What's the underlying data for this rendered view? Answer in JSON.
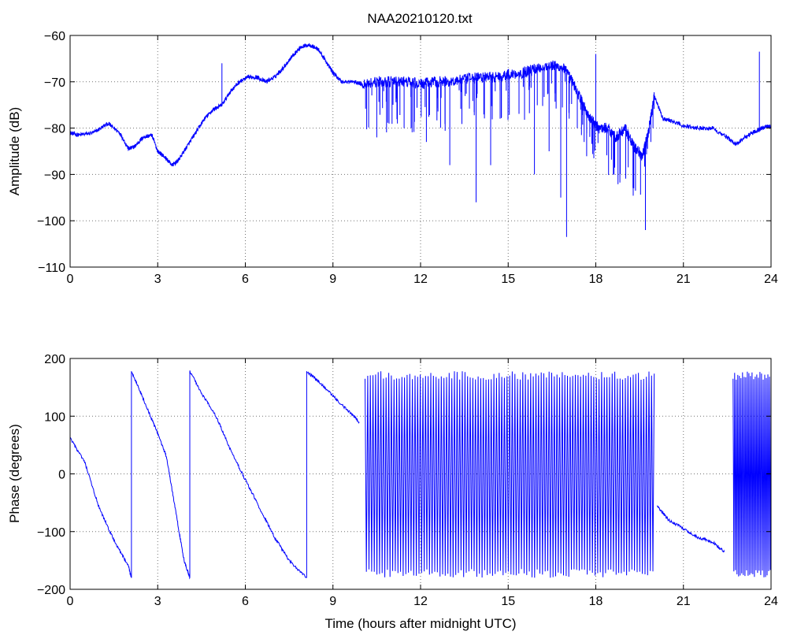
{
  "chart_data": [
    {
      "type": "line",
      "title": "NAA20210120.txt",
      "xlabel": "",
      "ylabel": "Amplitude (dB)",
      "xlim": [
        0,
        24
      ],
      "ylim": [
        -110,
        -60
      ],
      "xticks": [
        0,
        3,
        6,
        9,
        12,
        15,
        18,
        21,
        24
      ],
      "yticks": [
        -110,
        -100,
        -90,
        -80,
        -70,
        -60
      ],
      "ytick_labels": [
        "−110",
        "−100",
        "−90",
        "−80",
        "−70",
        "−60"
      ],
      "grid": true,
      "color": "#0000ff",
      "series": [
        {
          "x": [
            0,
            0.3,
            0.8,
            1.3,
            1.7,
            2.0,
            2.2,
            2.5,
            2.8,
            3.0,
            3.2,
            3.5,
            3.7,
            4.0,
            4.3,
            4.6,
            4.9,
            5.2,
            5.5,
            5.8,
            6.1,
            6.4,
            6.7,
            7.0,
            7.3,
            7.6,
            7.9,
            8.2,
            8.5,
            8.8,
            9.0,
            9.3,
            9.7,
            10.0,
            10.5,
            11.0,
            11.5,
            12.0,
            12.5,
            13.0,
            13.5,
            14.0,
            14.5,
            15.0,
            15.5,
            16.0,
            16.5,
            16.9,
            17.2,
            17.5,
            17.8,
            18.1,
            18.4,
            18.7,
            19.0,
            19.3,
            19.6,
            19.8,
            20.0,
            20.3,
            20.6,
            21.0,
            21.5,
            22.0,
            22.5,
            22.8,
            23.1,
            23.5,
            23.7,
            24.0
          ],
          "y": [
            -81,
            -81.5,
            -81,
            -79,
            -81,
            -84.5,
            -84,
            -82,
            -81.5,
            -85,
            -86,
            -88,
            -87,
            -84,
            -81,
            -78,
            -76,
            -75,
            -72,
            -70,
            -69,
            -69,
            -70,
            -69,
            -67,
            -64.5,
            -62.5,
            -62,
            -63,
            -66,
            -68,
            -70,
            -70,
            -70.5,
            -70,
            -70,
            -70,
            -70.5,
            -70,
            -70,
            -69.5,
            -69,
            -69,
            -68.5,
            -68,
            -67,
            -66.5,
            -67,
            -70,
            -74,
            -78,
            -80,
            -80,
            -82,
            -80,
            -84,
            -86,
            -81,
            -73,
            -78,
            -78.5,
            -79.5,
            -80,
            -80,
            -82,
            -83.5,
            -82,
            -80.5,
            -80,
            -79.5
          ]
        }
      ],
      "spikes": [
        {
          "x": 5.2,
          "y": -66
        },
        {
          "x": 10.5,
          "y": -82
        },
        {
          "x": 12.2,
          "y": -83
        },
        {
          "x": 13.0,
          "y": -88
        },
        {
          "x": 13.9,
          "y": -96
        },
        {
          "x": 14.4,
          "y": -88
        },
        {
          "x": 15.9,
          "y": -90
        },
        {
          "x": 16.4,
          "y": -85
        },
        {
          "x": 16.8,
          "y": -95
        },
        {
          "x": 17.0,
          "y": -103.5
        },
        {
          "x": 17.6,
          "y": -83
        },
        {
          "x": 18.0,
          "y": -64
        },
        {
          "x": 18.6,
          "y": -90
        },
        {
          "x": 19.3,
          "y": -93
        },
        {
          "x": 19.7,
          "y": -102
        },
        {
          "x": 23.6,
          "y": -63.5
        }
      ]
    },
    {
      "type": "line",
      "title": "",
      "xlabel": "Time (hours after midnight UTC)",
      "ylabel": "Phase (degrees)",
      "xlim": [
        0,
        24
      ],
      "ylim": [
        -200,
        200
      ],
      "xticks": [
        0,
        3,
        6,
        9,
        12,
        15,
        18,
        21,
        24
      ],
      "yticks": [
        -200,
        -100,
        0,
        100,
        200
      ],
      "ytick_labels": [
        "−200",
        "−100",
        "0",
        "100",
        "200"
      ],
      "grid": true,
      "color": "#0000ff",
      "segments": [
        {
          "x": [
            0,
            0.5,
            1.0,
            1.5,
            2.0,
            2.1
          ],
          "y": [
            62,
            20,
            -60,
            -115,
            -160,
            -180
          ]
        },
        {
          "x": [
            2.1,
            2.5,
            3.0,
            3.3,
            3.6,
            3.9,
            4.1
          ],
          "y": [
            178,
            130,
            70,
            30,
            -60,
            -150,
            -180
          ]
        },
        {
          "x": [
            4.1,
            4.5,
            5.0,
            5.5,
            6.0,
            6.5,
            7.0,
            7.5,
            8.1
          ],
          "y": [
            178,
            140,
            100,
            40,
            -10,
            -60,
            -110,
            -150,
            -180
          ]
        },
        {
          "x": [
            8.1,
            8.5,
            9.0,
            9.5,
            9.9
          ],
          "y": [
            178,
            160,
            135,
            110,
            90
          ]
        },
        {
          "x": [
            20.1,
            20.5,
            21.0,
            21.5,
            22.0,
            22.4
          ],
          "y": [
            -55,
            -80,
            -95,
            -110,
            -118,
            -135
          ]
        }
      ],
      "oscillation": [
        {
          "x_start": 10.1,
          "x_end": 20.0,
          "cycles": 55,
          "y_min": -180,
          "y_max": 178
        },
        {
          "x_start": 22.7,
          "x_end": 24.0,
          "cycles": 12,
          "y_min": -180,
          "y_max": 178
        }
      ]
    }
  ]
}
